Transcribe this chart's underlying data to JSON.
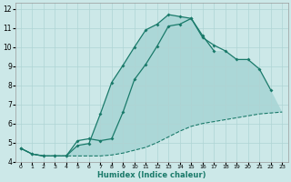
{
  "xlabel": "Humidex (Indice chaleur)",
  "background_color": "#cce8e8",
  "grid_color": "#afd4d4",
  "line_color": "#1a7a6a",
  "fill_color": "#7abfbf",
  "xlim": [
    -0.5,
    23.5
  ],
  "ylim": [
    4,
    12.3
  ],
  "xticks": [
    0,
    1,
    2,
    3,
    4,
    5,
    6,
    7,
    8,
    9,
    10,
    11,
    12,
    13,
    14,
    15,
    16,
    17,
    18,
    19,
    20,
    21,
    22,
    23
  ],
  "yticks": [
    4,
    5,
    6,
    7,
    8,
    9,
    10,
    11,
    12
  ],
  "line1_x": [
    0,
    1,
    2,
    3,
    4,
    5,
    6,
    7,
    8,
    9,
    10,
    11,
    12,
    13,
    14,
    15,
    16,
    17,
    18,
    19,
    20,
    21,
    22,
    23
  ],
  "line1_y": [
    4.7,
    4.4,
    4.3,
    4.3,
    4.3,
    4.3,
    4.3,
    4.3,
    4.35,
    4.45,
    4.6,
    4.75,
    5.0,
    5.3,
    5.6,
    5.85,
    6.0,
    6.1,
    6.2,
    6.3,
    6.4,
    6.5,
    6.55,
    6.6
  ],
  "line2_x": [
    0,
    1,
    2,
    3,
    4,
    5,
    6,
    7,
    8,
    9,
    10,
    11,
    12,
    13,
    14,
    15,
    16,
    17,
    18,
    19,
    20,
    21,
    22
  ],
  "line2_y": [
    4.7,
    4.4,
    4.3,
    4.3,
    4.3,
    5.1,
    5.2,
    5.1,
    5.2,
    6.6,
    8.3,
    9.1,
    10.05,
    11.1,
    11.2,
    11.5,
    10.5,
    10.1,
    9.8,
    9.35,
    9.35,
    8.85,
    7.75
  ],
  "line3_x": [
    0,
    1,
    2,
    3,
    4,
    5,
    6,
    7,
    8,
    9,
    10,
    11,
    12,
    13,
    14,
    15,
    16,
    17
  ],
  "line3_y": [
    4.7,
    4.4,
    4.3,
    4.3,
    4.3,
    4.85,
    4.95,
    6.5,
    8.15,
    9.05,
    10.0,
    10.9,
    11.2,
    11.7,
    11.6,
    11.5,
    10.6,
    9.8
  ]
}
